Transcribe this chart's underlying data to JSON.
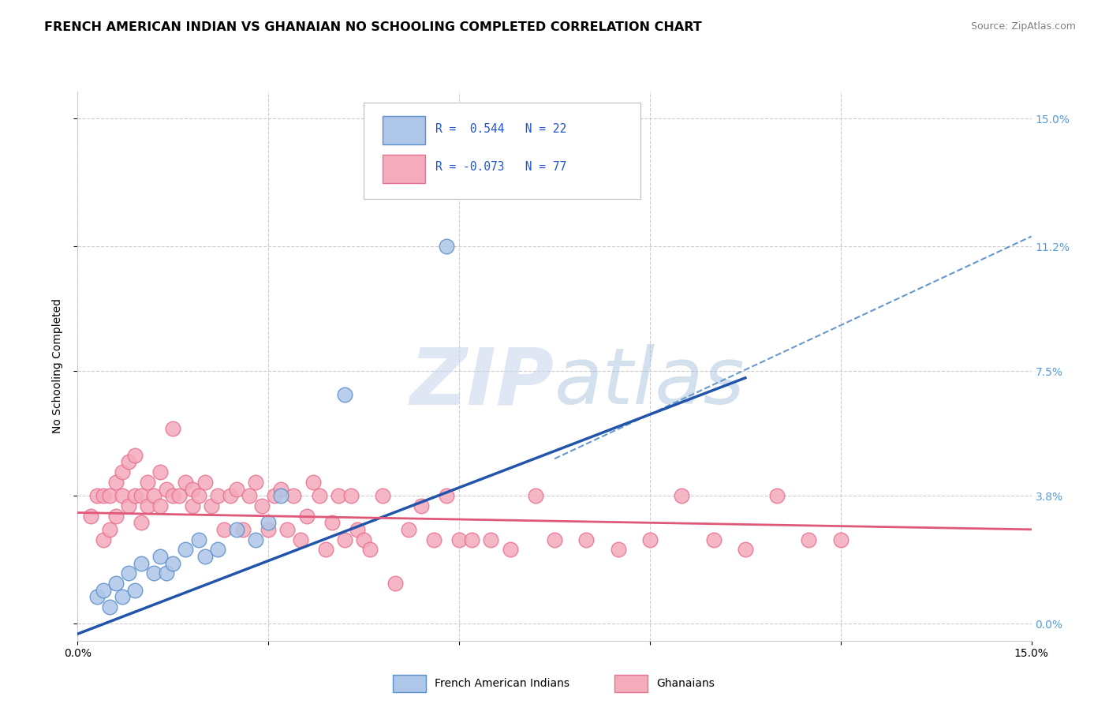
{
  "title": "FRENCH AMERICAN INDIAN VS GHANAIAN NO SCHOOLING COMPLETED CORRELATION CHART",
  "source": "Source: ZipAtlas.com",
  "ylabel": "No Schooling Completed",
  "xlim": [
    0,
    0.15
  ],
  "ylim": [
    -0.005,
    0.158
  ],
  "ytick_values": [
    0.0,
    0.038,
    0.075,
    0.112,
    0.15
  ],
  "ytick_labels": [
    "0.0%",
    "3.8%",
    "7.5%",
    "11.2%",
    "15.0%"
  ],
  "xtick_values": [
    0.0,
    0.03,
    0.06,
    0.09,
    0.12,
    0.15
  ],
  "xtick_labels": [
    "0.0%",
    "",
    "",
    "",
    "",
    "15.0%"
  ],
  "blue_color": "#AEC6E8",
  "pink_color": "#F4ABBB",
  "blue_edge_color": "#5B8FCC",
  "pink_edge_color": "#E87090",
  "blue_line_color": "#2255AA",
  "pink_line_color": "#E05878",
  "dashed_line_color": "#6699CC",
  "grid_color": "#CCCCCC",
  "background_color": "#FFFFFF",
  "title_fontsize": 11.5,
  "axis_label_fontsize": 10,
  "tick_fontsize": 10,
  "right_tick_color": "#5599DD",
  "blue_scatter_x": [
    0.003,
    0.004,
    0.005,
    0.006,
    0.007,
    0.008,
    0.009,
    0.01,
    0.012,
    0.013,
    0.014,
    0.015,
    0.017,
    0.019,
    0.02,
    0.022,
    0.025,
    0.028,
    0.03,
    0.032,
    0.042,
    0.058
  ],
  "blue_scatter_y": [
    0.008,
    0.01,
    0.005,
    0.012,
    0.008,
    0.015,
    0.01,
    0.018,
    0.015,
    0.02,
    0.015,
    0.018,
    0.022,
    0.025,
    0.02,
    0.022,
    0.028,
    0.025,
    0.03,
    0.038,
    0.068,
    0.112
  ],
  "pink_scatter_x": [
    0.002,
    0.003,
    0.004,
    0.004,
    0.005,
    0.005,
    0.006,
    0.006,
    0.007,
    0.007,
    0.008,
    0.008,
    0.009,
    0.009,
    0.01,
    0.01,
    0.011,
    0.011,
    0.012,
    0.013,
    0.013,
    0.014,
    0.015,
    0.015,
    0.016,
    0.017,
    0.018,
    0.018,
    0.019,
    0.02,
    0.021,
    0.022,
    0.023,
    0.024,
    0.025,
    0.026,
    0.027,
    0.028,
    0.029,
    0.03,
    0.031,
    0.032,
    0.033,
    0.034,
    0.035,
    0.036,
    0.037,
    0.038,
    0.039,
    0.04,
    0.041,
    0.042,
    0.043,
    0.044,
    0.045,
    0.046,
    0.048,
    0.05,
    0.052,
    0.054,
    0.056,
    0.058,
    0.06,
    0.062,
    0.065,
    0.068,
    0.072,
    0.075,
    0.08,
    0.085,
    0.09,
    0.095,
    0.1,
    0.105,
    0.11,
    0.115,
    0.12
  ],
  "pink_scatter_y": [
    0.032,
    0.038,
    0.025,
    0.038,
    0.028,
    0.038,
    0.032,
    0.042,
    0.038,
    0.045,
    0.035,
    0.048,
    0.038,
    0.05,
    0.03,
    0.038,
    0.035,
    0.042,
    0.038,
    0.035,
    0.045,
    0.04,
    0.038,
    0.058,
    0.038,
    0.042,
    0.035,
    0.04,
    0.038,
    0.042,
    0.035,
    0.038,
    0.028,
    0.038,
    0.04,
    0.028,
    0.038,
    0.042,
    0.035,
    0.028,
    0.038,
    0.04,
    0.028,
    0.038,
    0.025,
    0.032,
    0.042,
    0.038,
    0.022,
    0.03,
    0.038,
    0.025,
    0.038,
    0.028,
    0.025,
    0.022,
    0.038,
    0.012,
    0.028,
    0.035,
    0.025,
    0.038,
    0.025,
    0.025,
    0.025,
    0.022,
    0.038,
    0.025,
    0.025,
    0.022,
    0.025,
    0.038,
    0.025,
    0.022,
    0.038,
    0.025,
    0.025
  ],
  "blue_line_start_x": 0.0,
  "blue_line_start_y": -0.003,
  "blue_line_end_x": 0.105,
  "blue_line_end_y": 0.073,
  "dashed_line_start_x": 0.075,
  "dashed_line_start_y": 0.049,
  "dashed_line_end_x": 0.15,
  "dashed_line_end_y": 0.115,
  "pink_line_start_x": 0.0,
  "pink_line_start_y": 0.033,
  "pink_line_end_x": 0.15,
  "pink_line_end_y": 0.028
}
